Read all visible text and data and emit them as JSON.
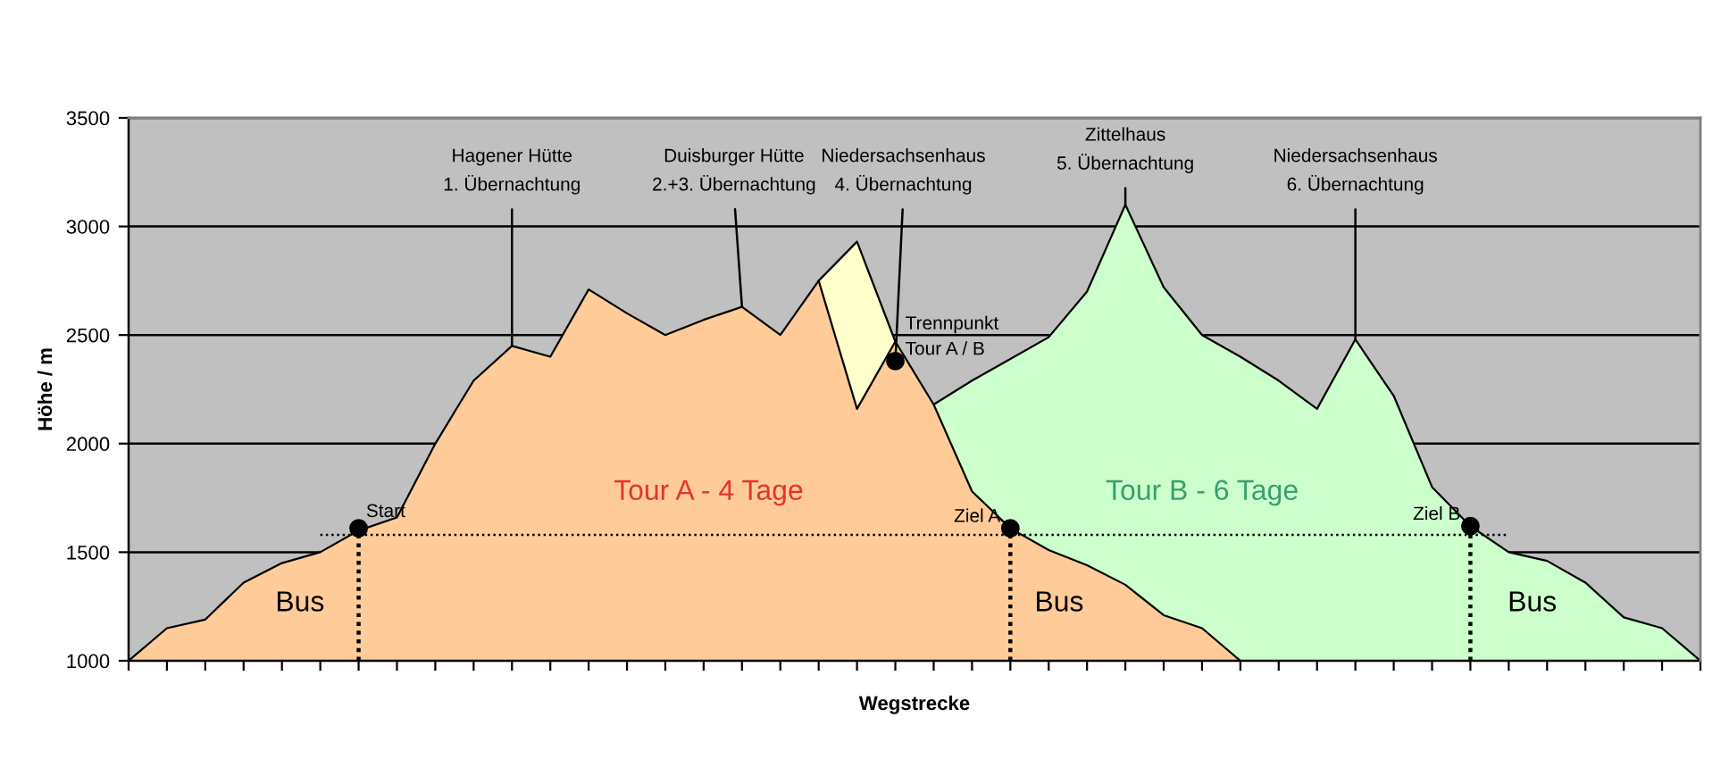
{
  "chart_data": {
    "type": "area",
    "xlabel": "Wegstrecke",
    "ylabel": "Höhe / m",
    "categories": [
      null,
      null,
      null,
      null,
      null,
      null,
      null,
      null,
      null,
      null,
      null,
      null,
      null,
      null,
      null,
      null,
      null,
      null,
      null,
      null,
      null,
      null,
      null,
      null,
      null,
      null,
      null,
      null,
      null,
      null,
      null,
      null,
      null,
      null,
      null,
      null,
      null,
      null,
      null,
      null,
      null,
      null
    ],
    "ylim": [
      1000,
      3500
    ],
    "yticks": [
      1000,
      1500,
      2000,
      2500,
      3000,
      3500
    ],
    "grid": "y",
    "tick_labels": "y",
    "series": [
      {
        "color": "#ffffcc",
        "values": [
          null,
          null,
          null,
          null,
          null,
          null,
          null,
          null,
          null,
          null,
          null,
          null,
          null,
          null,
          null,
          null,
          null,
          null,
          2750,
          2930,
          2470,
          null,
          null,
          null,
          null,
          null,
          null,
          null,
          null,
          null,
          null,
          null,
          null,
          null,
          null,
          null,
          null,
          null,
          null,
          null,
          null,
          null
        ]
      },
      {
        "name": "Tour B - 6 Tage",
        "color": "#ccffcc",
        "values": [
          null,
          null,
          null,
          null,
          null,
          null,
          null,
          null,
          null,
          null,
          null,
          null,
          null,
          null,
          null,
          null,
          null,
          null,
          null,
          null,
          null,
          2180,
          2290,
          2390,
          2490,
          2700,
          3100,
          2720,
          2500,
          2400,
          2290,
          2160,
          2480,
          2220,
          1800,
          1620,
          1500,
          1460,
          1360,
          1200,
          1150,
          1000
        ]
      },
      {
        "name": "Tour A - 4 Tage",
        "color": "#ffcc99",
        "values": [
          1000,
          1150,
          1190,
          1360,
          1450,
          1500,
          1600,
          1660,
          2000,
          2290,
          2450,
          2400,
          2710,
          2600,
          2500,
          2570,
          2630,
          2500,
          2750,
          2160,
          2470,
          2180,
          1780,
          1610,
          1510,
          1440,
          1350,
          1210,
          1150,
          1000,
          null,
          null,
          null,
          null,
          null,
          null,
          null,
          null,
          null,
          null,
          null,
          null
        ]
      },
      {
        "type": "line",
        "color": "#000000",
        "line_style": "dotted",
        "values": [
          null,
          null,
          null,
          null,
          null,
          1580,
          1580,
          1580,
          1580,
          1580,
          1580,
          1580,
          1580,
          1580,
          1580,
          1580,
          1580,
          1580,
          1580,
          1580,
          1580,
          1580,
          1580,
          1580,
          1580,
          1580,
          1580,
          1580,
          1580,
          1580,
          1580,
          1580,
          1580,
          1580,
          1580,
          1580,
          1580,
          null,
          null,
          null,
          null,
          null
        ]
      },
      {
        "type": "scatter",
        "name": "Start",
        "color": "#000000",
        "marker": "circle",
        "values": [
          null,
          null,
          null,
          null,
          null,
          null,
          1610,
          null,
          null,
          null,
          null,
          null,
          null,
          null,
          null,
          null,
          null,
          null,
          null,
          null,
          null,
          null,
          null,
          null,
          null,
          null,
          null,
          null,
          null,
          null,
          null,
          null,
          null,
          null,
          null,
          null,
          null,
          null,
          null,
          null,
          null,
          null
        ],
        "errors": [
          null,
          null,
          null,
          null,
          null,
          null,
          [
            1000,
            1610
          ],
          null,
          null,
          null,
          null,
          null,
          null,
          null,
          null,
          null,
          null,
          null,
          null,
          null,
          null,
          null,
          null,
          null,
          null,
          null,
          null,
          null,
          null,
          null,
          null,
          null,
          null,
          null,
          null,
          null,
          null,
          null,
          null,
          null,
          null,
          null
        ]
      },
      {
        "type": "scatter",
        "name": "Trennpunkt\nTour A / B",
        "color": "#000000",
        "marker": "circle",
        "values": [
          null,
          null,
          null,
          null,
          null,
          null,
          null,
          null,
          null,
          null,
          null,
          null,
          null,
          null,
          null,
          null,
          null,
          null,
          null,
          null,
          2380,
          null,
          null,
          null,
          null,
          null,
          null,
          null,
          null,
          null,
          null,
          null,
          null,
          null,
          null,
          null,
          null,
          null,
          null,
          null,
          null,
          null
        ]
      },
      {
        "type": "scatter",
        "name": "Ziel A",
        "color": "#000000",
        "marker": "circle",
        "values": [
          null,
          null,
          null,
          null,
          null,
          null,
          null,
          null,
          null,
          null,
          null,
          null,
          null,
          null,
          null,
          null,
          null,
          null,
          null,
          null,
          null,
          null,
          null,
          1610,
          null,
          null,
          null,
          null,
          null,
          null,
          null,
          null,
          null,
          null,
          null,
          null,
          null,
          null,
          null,
          null,
          null,
          null
        ],
        "errors": [
          null,
          null,
          null,
          null,
          null,
          null,
          null,
          null,
          null,
          null,
          null,
          null,
          null,
          null,
          null,
          null,
          null,
          null,
          null,
          null,
          null,
          null,
          null,
          [
            1000,
            1610
          ],
          null,
          null,
          null,
          null,
          null,
          null,
          null,
          null,
          null,
          null,
          null,
          null,
          null,
          null,
          null,
          null,
          null,
          null
        ]
      },
      {
        "type": "scatter",
        "name": "Ziel B",
        "color": "#000000",
        "marker": "circle",
        "values": [
          null,
          null,
          null,
          null,
          null,
          null,
          null,
          null,
          null,
          null,
          null,
          null,
          null,
          null,
          null,
          null,
          null,
          null,
          null,
          null,
          null,
          null,
          null,
          null,
          null,
          null,
          null,
          null,
          null,
          null,
          null,
          null,
          null,
          null,
          null,
          1620,
          null,
          null,
          null,
          null,
          null,
          null
        ],
        "errors": [
          null,
          null,
          null,
          null,
          null,
          null,
          null,
          null,
          null,
          null,
          null,
          null,
          null,
          null,
          null,
          null,
          null,
          null,
          null,
          null,
          null,
          null,
          null,
          null,
          null,
          null,
          null,
          null,
          null,
          null,
          null,
          null,
          null,
          null,
          null,
          [
            1000,
            1620
          ],
          null,
          null,
          null,
          null,
          null,
          null
        ]
      }
    ],
    "annotations": [
      {
        "text": "Hagener Hütte\n1. Übernachtung",
        "y": 2450
      },
      {
        "text": "Duisburger Hütte\n2.+3. Übernachtung",
        "y": 2630
      },
      {
        "text": "Niedersachsenhaus\n4. Übernachtung",
        "y": 2380
      },
      {
        "text": "Zittelhaus\n5. Übernachtung",
        "y": 3100
      },
      {
        "text": "Niedersachsenhaus\n6. Übernachtung",
        "y": 2480
      },
      "Bus",
      "Bus",
      "Bus"
    ]
  }
}
